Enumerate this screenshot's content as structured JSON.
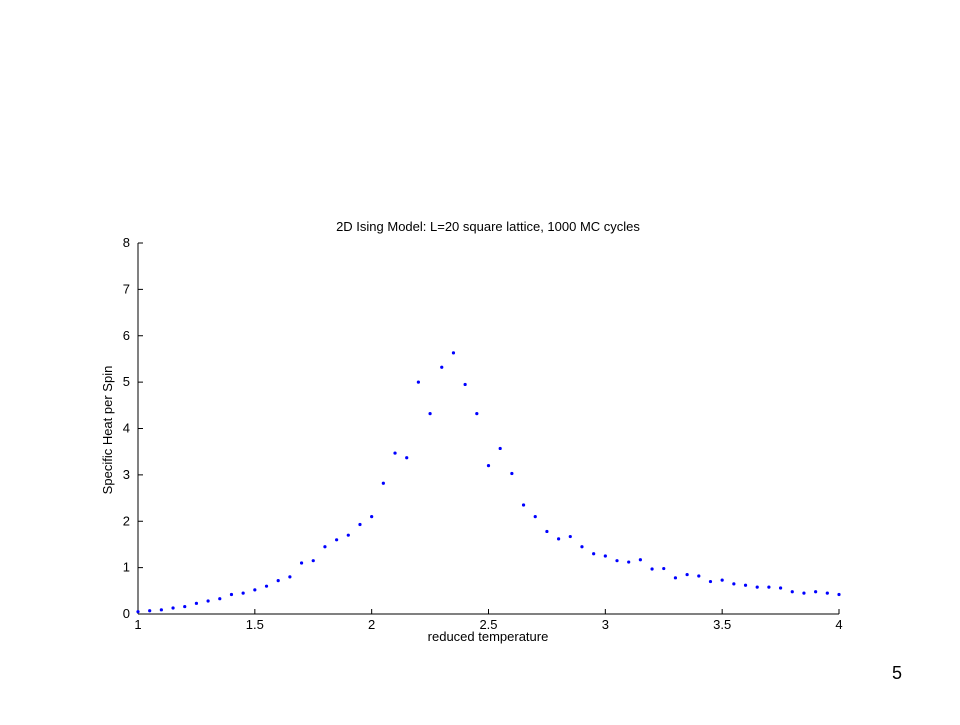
{
  "chart_data": {
    "type": "scatter",
    "title": "2D Ising Model:  L=20 square lattice, 1000 MC cycles",
    "x_label": "reduced temperature",
    "y_label": "Specific Heat per Spin",
    "series": [
      {
        "name": "Specific Heat",
        "color": "#0000ff",
        "x": [
          1,
          1.05,
          1.1,
          1.15,
          1.2,
          1.25,
          1.3,
          1.35,
          1.4,
          1.45,
          1.5,
          1.55,
          1.6,
          1.65,
          1.7,
          1.75,
          1.8,
          1.85,
          1.9,
          1.95,
          2,
          2.05,
          2.1,
          2.15,
          2.2,
          2.25,
          2.3,
          2.35,
          2.4,
          2.45,
          2.5,
          2.55,
          2.6,
          2.65,
          2.7,
          2.75,
          2.8,
          2.85,
          2.9,
          2.95,
          3,
          3.05,
          3.1,
          3.15,
          3.2,
          3.25,
          3.3,
          3.35,
          3.4,
          3.45,
          3.5,
          3.55,
          3.6,
          3.65,
          3.7,
          3.75,
          3.8,
          3.85,
          3.9,
          3.95,
          4
        ],
        "values": [
          0.05,
          0.07,
          0.09,
          0.13,
          0.16,
          0.23,
          0.28,
          0.33,
          0.42,
          0.45,
          0.52,
          0.6,
          0.72,
          0.8,
          1.1,
          1.15,
          1.45,
          1.6,
          1.7,
          1.93,
          2.1,
          2.82,
          3.47,
          3.37,
          5.0,
          4.32,
          5.32,
          5.63,
          4.95,
          4.32,
          3.2,
          3.57,
          3.03,
          2.35,
          2.1,
          1.78,
          1.62,
          1.67,
          1.45,
          1.3,
          1.25,
          1.15,
          1.12,
          1.17,
          0.97,
          0.98,
          0.78,
          0.85,
          0.82,
          0.7,
          0.73,
          0.65,
          0.62,
          0.58,
          0.58,
          0.56,
          0.48,
          0.45,
          0.48,
          0.45,
          0.42
        ]
      }
    ],
    "xlim": [
      1,
      4
    ],
    "xticks": [
      1,
      1.5,
      2,
      2.5,
      3,
      3.5,
      4
    ],
    "ylim": [
      0,
      8
    ],
    "yticks": [
      0,
      1,
      2,
      3,
      4,
      5,
      6,
      7,
      8
    ],
    "grid": false
  },
  "page_number": "5"
}
